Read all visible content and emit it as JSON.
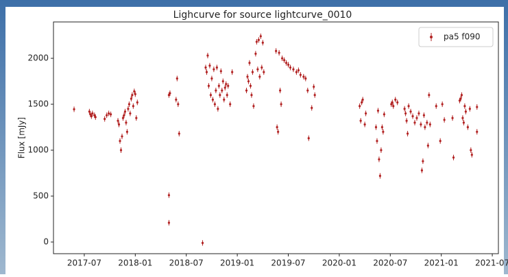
{
  "chart_data": {
    "type": "scatter",
    "title": "Lighcurve for source lightcurve_0010",
    "y_label": "Flux [mJy]",
    "x": [
      2017.4,
      2017.55,
      2017.56,
      2017.57,
      2017.58,
      2017.6,
      2017.61,
      2017.7,
      2017.72,
      2017.74,
      2017.76,
      2017.83,
      2017.84,
      2017.85,
      2017.86,
      2017.87,
      2017.88,
      2017.89,
      2017.9,
      2017.91,
      2017.92,
      2017.93,
      2017.94,
      2017.95,
      2017.96,
      2017.97,
      2017.98,
      2017.99,
      2018.0,
      2018.01,
      2018.02,
      2018.33,
      2018.33,
      2018.33,
      2018.34,
      2018.4,
      2018.41,
      2018.42,
      2018.43,
      2018.66,
      2018.69,
      2018.7,
      2018.71,
      2018.72,
      2018.73,
      2018.74,
      2018.75,
      2018.76,
      2018.77,
      2018.78,
      2018.79,
      2018.8,
      2018.81,
      2018.82,
      2018.83,
      2018.84,
      2018.85,
      2018.86,
      2018.87,
      2018.88,
      2018.89,
      2018.9,
      2018.91,
      2018.93,
      2018.95,
      2019.09,
      2019.1,
      2019.11,
      2019.12,
      2019.13,
      2019.14,
      2019.15,
      2019.16,
      2019.18,
      2019.19,
      2019.2,
      2019.21,
      2019.22,
      2019.23,
      2019.24,
      2019.25,
      2019.26,
      2019.38,
      2019.39,
      2019.4,
      2019.41,
      2019.42,
      2019.43,
      2019.44,
      2019.46,
      2019.48,
      2019.5,
      2019.52,
      2019.55,
      2019.58,
      2019.6,
      2019.62,
      2019.65,
      2019.67,
      2019.69,
      2019.7,
      2019.73,
      2019.75,
      2019.76,
      2020.2,
      2020.21,
      2020.22,
      2020.23,
      2020.25,
      2020.26,
      2020.36,
      2020.37,
      2020.38,
      2020.39,
      2020.4,
      2020.41,
      2020.42,
      2020.43,
      2020.44,
      2020.51,
      2020.52,
      2020.53,
      2020.55,
      2020.57,
      2020.64,
      2020.65,
      2020.66,
      2020.67,
      2020.68,
      2020.7,
      2020.72,
      2020.74,
      2020.76,
      2020.78,
      2020.8,
      2020.81,
      2020.82,
      2020.83,
      2020.84,
      2020.86,
      2020.87,
      2020.88,
      2020.89,
      2020.95,
      2020.99,
      2021.01,
      2021.03,
      2021.11,
      2021.12,
      2021.18,
      2021.19,
      2021.2,
      2021.21,
      2021.22,
      2021.23,
      2021.24,
      2021.26,
      2021.28,
      2021.29,
      2021.3,
      2021.35,
      2021.35
    ],
    "series": [
      {
        "name": "pa5 f090",
        "color": "#b22222",
        "values": [
          1445,
          1420,
          1390,
          1370,
          1400,
          1380,
          1360,
          1340,
          1380,
          1400,
          1390,
          1320,
          1280,
          1100,
          1000,
          1150,
          1350,
          1380,
          1420,
          1300,
          1200,
          1450,
          1500,
          1400,
          1560,
          1600,
          1480,
          1640,
          1610,
          1350,
          1520,
          510,
          210,
          1600,
          1620,
          1550,
          1780,
          1500,
          1180,
          -10,
          1900,
          1850,
          2030,
          1700,
          1920,
          1600,
          1780,
          1550,
          1880,
          1500,
          1650,
          1900,
          1450,
          1700,
          1600,
          1860,
          1650,
          1750,
          1550,
          1680,
          1720,
          1600,
          1700,
          1500,
          1850,
          1650,
          1800,
          1750,
          1950,
          1700,
          1600,
          1850,
          1480,
          2050,
          2180,
          1880,
          2200,
          1800,
          2240,
          1900,
          2170,
          1850,
          2080,
          1250,
          1200,
          2060,
          1650,
          1500,
          2000,
          1980,
          1950,
          1930,
          1900,
          1880,
          1850,
          1870,
          1820,
          1800,
          1780,
          1650,
          1130,
          1460,
          1690,
          1600,
          1480,
          1320,
          1520,
          1550,
          1280,
          1400,
          1250,
          1100,
          1430,
          900,
          720,
          1000,
          1250,
          1200,
          1390,
          1500,
          1520,
          1480,
          1550,
          1520,
          1450,
          1400,
          1320,
          1180,
          1480,
          1420,
          1370,
          1300,
          1350,
          1400,
          1280,
          780,
          880,
          1380,
          1250,
          1300,
          1050,
          1600,
          1280,
          1480,
          1100,
          1500,
          1330,
          1350,
          920,
          1540,
          1560,
          1600,
          1350,
          1300,
          1480,
          1420,
          1250,
          1450,
          1000,
          950,
          1470,
          1200
        ]
      }
    ],
    "xlim": [
      2017.198,
      2021.56
    ],
    "xticks": [
      {
        "value": 2017.5,
        "label": "2017-07"
      },
      {
        "value": 2018.0,
        "label": "2018-01"
      },
      {
        "value": 2018.5,
        "label": "2018-07"
      },
      {
        "value": 2019.0,
        "label": "2019-01"
      },
      {
        "value": 2019.5,
        "label": "2019-07"
      },
      {
        "value": 2020.0,
        "label": "2020-01"
      },
      {
        "value": 2020.5,
        "label": "2020-07"
      },
      {
        "value": 2021.0,
        "label": "2021-01"
      },
      {
        "value": 2021.5,
        "label": "2021-07"
      }
    ],
    "ylim": [
      -127,
      2396
    ],
    "yticks": [
      0,
      500,
      1000,
      1500,
      2000
    ],
    "legend": "upper right"
  }
}
